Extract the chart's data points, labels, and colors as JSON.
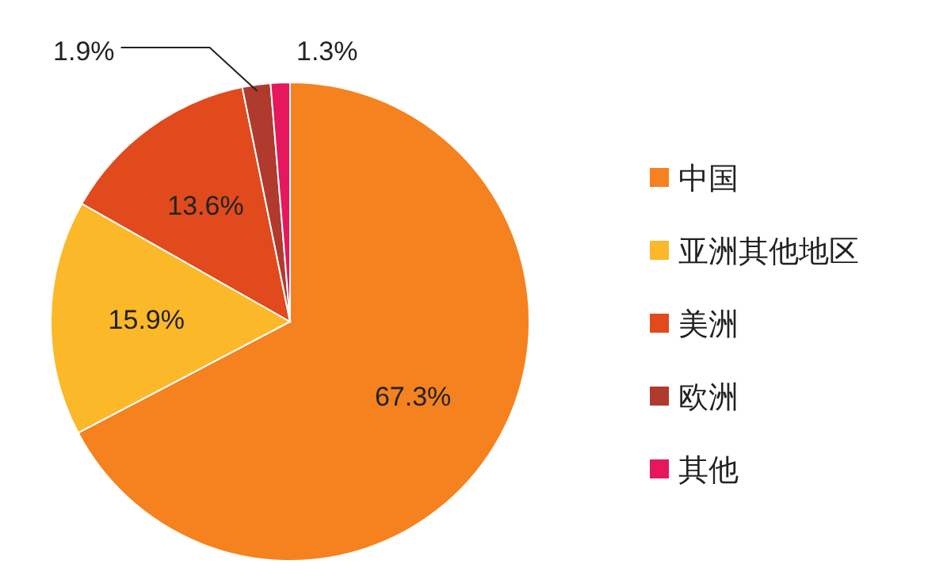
{
  "chart_data": {
    "type": "pie",
    "categories": [
      "中国",
      "亚洲其他地区",
      "美洲",
      "欧洲",
      "其他"
    ],
    "values": [
      67.3,
      15.9,
      13.6,
      1.9,
      1.3
    ],
    "value_labels": [
      "67.3%",
      "15.9%",
      "13.6%",
      "1.9%",
      "1.3%"
    ],
    "colors": [
      "#f5821f",
      "#fbb829",
      "#e04a1c",
      "#b03a2e",
      "#e6175c"
    ],
    "legend": "right"
  }
}
